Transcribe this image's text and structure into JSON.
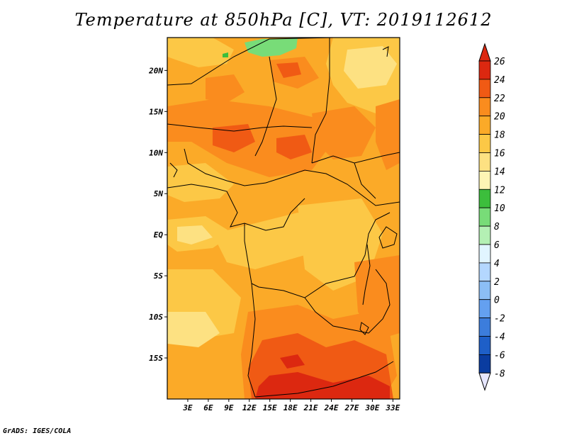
{
  "title": "Temperature at 850hPa [C], VT: 2019112612",
  "credit": "GrADS: IGES/COLA",
  "map": {
    "lon_range": [
      0,
      34
    ],
    "lat_range": [
      -20,
      24
    ],
    "lat_ticks": [
      {
        "lat": 20,
        "label": "20N"
      },
      {
        "lat": 15,
        "label": "15N"
      },
      {
        "lat": 10,
        "label": "10N"
      },
      {
        "lat": 5,
        "label": "5N"
      },
      {
        "lat": 0,
        "label": "EQ"
      },
      {
        "lat": -5,
        "label": "5S"
      },
      {
        "lat": -10,
        "label": "10S"
      },
      {
        "lat": -15,
        "label": "15S"
      }
    ],
    "lon_ticks": [
      {
        "lon": 3,
        "label": "3E"
      },
      {
        "lon": 6,
        "label": "6E"
      },
      {
        "lon": 9,
        "label": "9E"
      },
      {
        "lon": 12,
        "label": "12E"
      },
      {
        "lon": 15,
        "label": "15E"
      },
      {
        "lon": 18,
        "label": "18E"
      },
      {
        "lon": 21,
        "label": "21E"
      },
      {
        "lon": 24,
        "label": "24E"
      },
      {
        "lon": 27,
        "label": "27E"
      },
      {
        "lon": 30,
        "label": "30E"
      },
      {
        "lon": 33,
        "label": "33E"
      }
    ]
  },
  "colorbar": {
    "levels": [
      "26",
      "24",
      "22",
      "20",
      "18",
      "16",
      "14",
      "12",
      "10",
      "8",
      "6",
      "4",
      "2",
      "0",
      "-2",
      "-4",
      "-6",
      "-8"
    ],
    "colors": [
      "#dc2810",
      "#f05a14",
      "#fa8c1e",
      "#fbaa28",
      "#fcc846",
      "#fde182",
      "#fdf5b4",
      "#3cbe3c",
      "#78dc78",
      "#b4f0b4",
      "#e1f5ff",
      "#b4d7ff",
      "#8cbef5",
      "#64a0f0",
      "#3c7ddc",
      "#1e5fc8",
      "#0a3ca0",
      "#0a1e6e"
    ],
    "top_triangle_color": "#dc2810",
    "bottom_triangle_color": "#e6e6ff"
  }
}
